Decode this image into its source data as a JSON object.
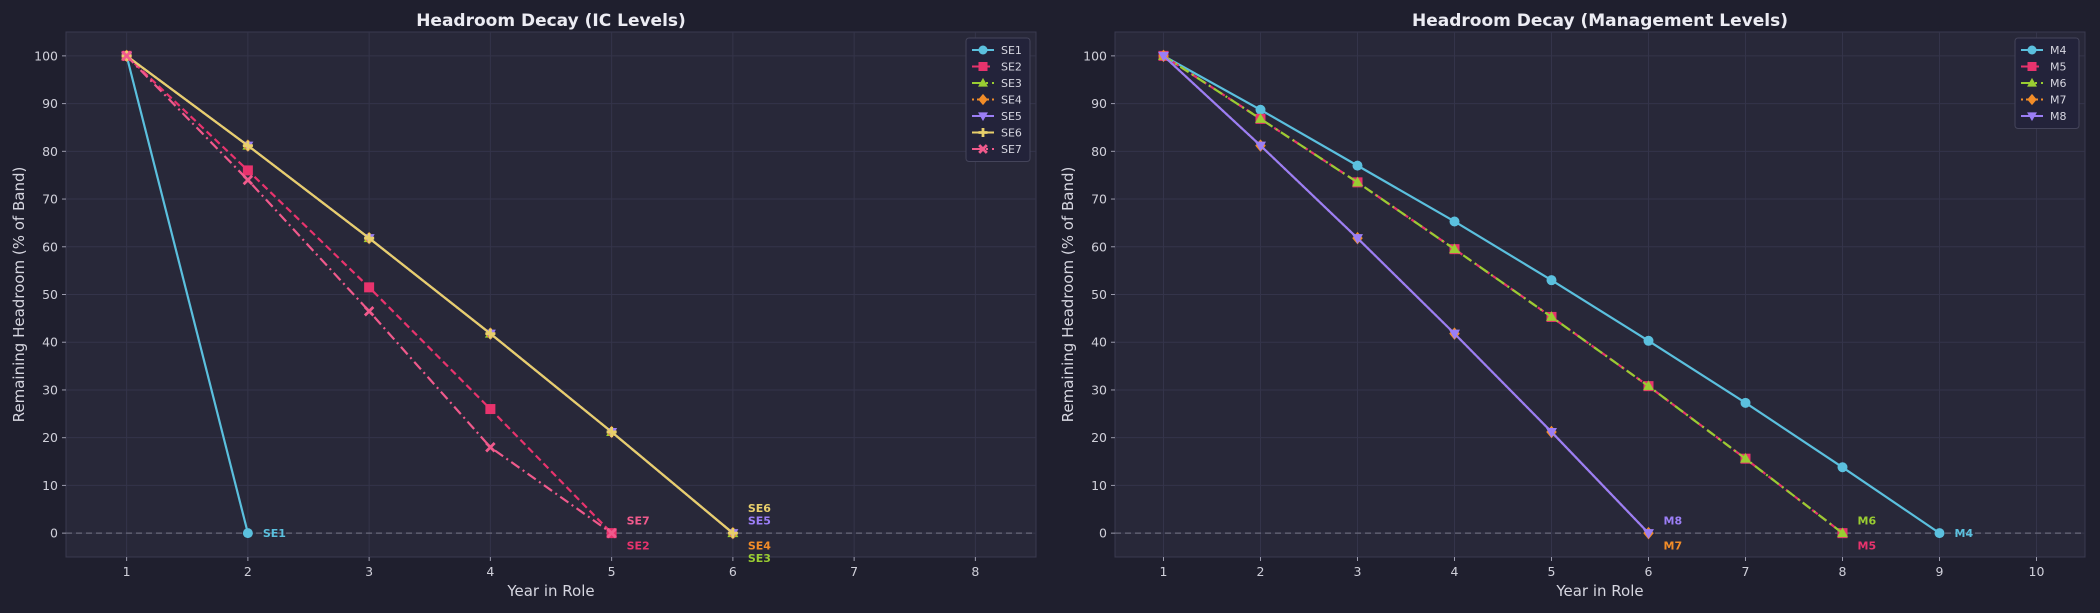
{
  "figure": {
    "background": "#1f1f2e",
    "panel_background": "#282839",
    "grid_color": "#34344a",
    "zero_line_color": "#6a6a7c"
  },
  "chart_data": [
    {
      "type": "line",
      "title": "Headroom Decay (IC Levels)",
      "xlabel": "Year in Role",
      "ylabel": "Remaining Headroom (% of Band)",
      "xlim": [
        0.5,
        8.5
      ],
      "ylim": [
        -5,
        105
      ],
      "xticks": [
        1,
        2,
        3,
        4,
        5,
        6,
        7,
        8
      ],
      "yticks": [
        0,
        10,
        20,
        30,
        40,
        50,
        60,
        70,
        80,
        90,
        100
      ],
      "grid": true,
      "legend": "top-right",
      "series": [
        {
          "name": "SE1",
          "color": "#5bc0de",
          "dash": "solid",
          "marker": "circle",
          "x": [
            1,
            2
          ],
          "y": [
            100,
            0
          ]
        },
        {
          "name": "SE2",
          "color": "#e8336d",
          "dash": "dashed",
          "marker": "square",
          "x": [
            1,
            2,
            3,
            4,
            5
          ],
          "y": [
            100,
            76,
            51.5,
            26,
            0
          ]
        },
        {
          "name": "SE3",
          "color": "#9acd32",
          "dash": "dashdot",
          "marker": "triangle-up",
          "x": [
            1,
            2,
            3,
            4,
            5,
            6
          ],
          "y": [
            100,
            81.2,
            61.8,
            41.8,
            21.2,
            0
          ]
        },
        {
          "name": "SE4",
          "color": "#f28c28",
          "dash": "dotted",
          "marker": "diamond",
          "x": [
            1,
            2,
            3,
            4,
            5,
            6
          ],
          "y": [
            100,
            81.2,
            61.8,
            41.8,
            21.2,
            0
          ]
        },
        {
          "name": "SE5",
          "color": "#9b7ef5",
          "dash": "solid",
          "marker": "triangle-down",
          "x": [
            1,
            2,
            3,
            4,
            5,
            6
          ],
          "y": [
            100,
            81.2,
            61.8,
            41.8,
            21.2,
            0
          ]
        },
        {
          "name": "SE6",
          "color": "#e8cf6b",
          "dash": "solid",
          "marker": "plus",
          "x": [
            1,
            2,
            3,
            4,
            5,
            6
          ],
          "y": [
            100,
            81.2,
            61.8,
            41.8,
            21.2,
            0
          ]
        },
        {
          "name": "SE7",
          "color": "#f05a8c",
          "dash": "dashdot",
          "marker": "x",
          "x": [
            1,
            2,
            3,
            4,
            5
          ],
          "y": [
            100,
            74,
            46.5,
            18,
            0
          ]
        }
      ],
      "end_labels": [
        {
          "text": "SE1",
          "color": "#5bc0de",
          "x": 2,
          "y": 0,
          "row": 0
        },
        {
          "text": "SE7",
          "color": "#f05a8c",
          "x": 5,
          "y": 0,
          "row": 1
        },
        {
          "text": "SE2",
          "color": "#e8336d",
          "x": 5,
          "y": 0,
          "row": -1
        },
        {
          "text": "SE6",
          "color": "#e8cf6b",
          "x": 6,
          "y": 0,
          "row": 2
        },
        {
          "text": "SE5",
          "color": "#9b7ef5",
          "x": 6,
          "y": 0,
          "row": 1
        },
        {
          "text": "SE4",
          "color": "#f28c28",
          "x": 6,
          "y": 0,
          "row": -1
        },
        {
          "text": "SE3",
          "color": "#9acd32",
          "x": 6,
          "y": 0,
          "row": -2
        }
      ]
    },
    {
      "type": "line",
      "title": "Headroom Decay (Management Levels)",
      "xlabel": "Year in Role",
      "ylabel": "Remaining Headroom (% of Band)",
      "xlim": [
        0.5,
        10.5
      ],
      "ylim": [
        -5,
        105
      ],
      "xticks": [
        1,
        2,
        3,
        4,
        5,
        6,
        7,
        8,
        9,
        10
      ],
      "yticks": [
        0,
        10,
        20,
        30,
        40,
        50,
        60,
        70,
        80,
        90,
        100
      ],
      "grid": true,
      "legend": "top-right",
      "series": [
        {
          "name": "M4",
          "color": "#5bc0de",
          "dash": "solid",
          "marker": "circle",
          "x": [
            1,
            2,
            3,
            4,
            5,
            6,
            7,
            8,
            9
          ],
          "y": [
            100,
            88.7,
            77,
            65.3,
            53,
            40.3,
            27.3,
            13.8,
            0
          ]
        },
        {
          "name": "M5",
          "color": "#e8336d",
          "dash": "dashed",
          "marker": "square",
          "x": [
            1,
            2,
            3,
            4,
            5,
            6,
            7,
            8
          ],
          "y": [
            100,
            86.8,
            73.5,
            59.5,
            45.3,
            30.8,
            15.6,
            0
          ]
        },
        {
          "name": "M6",
          "color": "#9acd32",
          "dash": "dashdot",
          "marker": "triangle-up",
          "x": [
            1,
            2,
            3,
            4,
            5,
            6,
            7,
            8
          ],
          "y": [
            100,
            86.8,
            73.5,
            59.5,
            45.3,
            30.8,
            15.6,
            0
          ]
        },
        {
          "name": "M7",
          "color": "#f28c28",
          "dash": "dotted",
          "marker": "diamond",
          "x": [
            1,
            2,
            3,
            4,
            5,
            6
          ],
          "y": [
            100,
            81.2,
            61.8,
            41.8,
            21.2,
            0
          ]
        },
        {
          "name": "M8",
          "color": "#9b7ef5",
          "dash": "solid",
          "marker": "triangle-down",
          "x": [
            1,
            2,
            3,
            4,
            5,
            6
          ],
          "y": [
            100,
            81.2,
            61.8,
            41.8,
            21.2,
            0
          ]
        }
      ],
      "end_labels": [
        {
          "text": "M8",
          "color": "#9b7ef5",
          "x": 6,
          "y": 0,
          "row": 1
        },
        {
          "text": "M7",
          "color": "#f28c28",
          "x": 6,
          "y": 0,
          "row": -1
        },
        {
          "text": "M6",
          "color": "#9acd32",
          "x": 8,
          "y": 0,
          "row": 1
        },
        {
          "text": "M5",
          "color": "#e8336d",
          "x": 8,
          "y": 0,
          "row": -1
        },
        {
          "text": "M4",
          "color": "#5bc0de",
          "x": 9,
          "y": 0,
          "row": 0
        }
      ]
    }
  ]
}
